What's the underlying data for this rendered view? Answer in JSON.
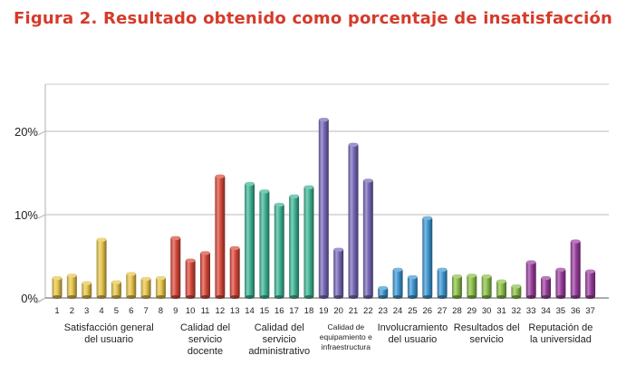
{
  "chart_data": {
    "type": "bar",
    "title": "Figura 2. Resultado obtenido como porcentaje de insatisfacción",
    "xlabel": "",
    "ylabel": "",
    "ylim": [
      0,
      25
    ],
    "y_ticks": [
      "0%",
      "10%",
      "20%"
    ],
    "grid": true,
    "categories": [
      "1",
      "2",
      "3",
      "4",
      "5",
      "6",
      "7",
      "8",
      "9",
      "10",
      "11",
      "12",
      "13",
      "14",
      "15",
      "16",
      "17",
      "18",
      "19",
      "20",
      "21",
      "22",
      "23",
      "24",
      "25",
      "26",
      "27",
      "28",
      "29",
      "30",
      "31",
      "32",
      "33",
      "34",
      "35",
      "36",
      "37"
    ],
    "values": [
      2.6,
      2.9,
      2.0,
      7.2,
      2.1,
      3.1,
      2.5,
      2.6,
      7.4,
      4.7,
      5.6,
      14.8,
      6.2,
      13.9,
      13.0,
      11.4,
      12.4,
      13.5,
      21.6,
      6.0,
      18.6,
      14.3,
      1.4,
      3.6,
      2.7,
      9.8,
      3.6,
      2.8,
      2.9,
      2.8,
      2.2,
      1.6,
      4.5,
      2.6,
      3.6,
      7.0,
      3.4
    ],
    "groups": [
      {
        "label": "Satisfacción general del usuario",
        "lines": [
          "Satisfacción general",
          "del usuario"
        ],
        "range": [
          1,
          8
        ],
        "color": "#e8c64a"
      },
      {
        "label": "Calidad del servicio docente",
        "lines": [
          "Calidad del",
          "servicio",
          "docente"
        ],
        "range": [
          9,
          13
        ],
        "color": "#d9493a"
      },
      {
        "label": "Calidad del servicio administrativo",
        "lines": [
          "Calidad del",
          "servicio",
          "administrativo"
        ],
        "range": [
          14,
          18
        ],
        "color": "#3fb596"
      },
      {
        "label": "Calidad de equipamiento e infraestructura",
        "lines": [
          "Calidad de",
          "equipamiento e",
          "infraestructura"
        ],
        "range": [
          19,
          22
        ],
        "color": "#7767b8"
      },
      {
        "label": "Involucramiento del usuario",
        "lines": [
          "Involucramiento",
          "del usuario"
        ],
        "range": [
          23,
          27
        ],
        "color": "#3f98d2"
      },
      {
        "label": "Resultados del servicio",
        "lines": [
          "Resultados del",
          "servicio"
        ],
        "range": [
          28,
          32
        ],
        "color": "#8cc04a"
      },
      {
        "label": "Reputación de la universidad",
        "lines": [
          "Reputación de",
          "la universidad"
        ],
        "range": [
          33,
          37
        ],
        "color": "#9a3e9e"
      }
    ]
  }
}
